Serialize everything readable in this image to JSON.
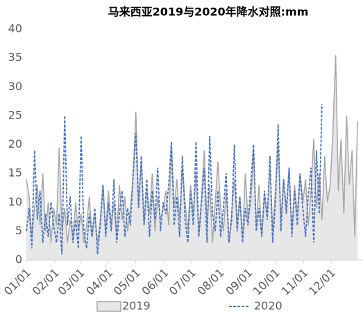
{
  "chart_data": {
    "type": "area-line",
    "title": "马来西亚2019与2020年降水对照:mm",
    "x": [
      1,
      4,
      7,
      10,
      13,
      16,
      19,
      22,
      25,
      28,
      31,
      34,
      37,
      40,
      43,
      46,
      49,
      52,
      55,
      58,
      61,
      64,
      67,
      70,
      73,
      76,
      79,
      82,
      85,
      88,
      91,
      94,
      97,
      100,
      103,
      106,
      109,
      112,
      115,
      118,
      121,
      124,
      127,
      130,
      133,
      136,
      139,
      142,
      145,
      148,
      151,
      154,
      157,
      160,
      163,
      166,
      169,
      172,
      175,
      178,
      181,
      184,
      187,
      190,
      193,
      196,
      199,
      202,
      205,
      208,
      211,
      214,
      217,
      220,
      223,
      226,
      229,
      232,
      235,
      238,
      241,
      244,
      247,
      250,
      253,
      256,
      259,
      262,
      265,
      268,
      271,
      274,
      277,
      280,
      283,
      286,
      289,
      292,
      295,
      298,
      301,
      304,
      307,
      310,
      313,
      316,
      319,
      322,
      325,
      328,
      331,
      334,
      337,
      340,
      343,
      346,
      349,
      352,
      355,
      358,
      361,
      364
    ],
    "series": [
      {
        "name": "2019",
        "color": "#a6a6a6",
        "fill": "#e7e7e7",
        "style": "area",
        "values": [
          14,
          11,
          4,
          9,
          13,
          6,
          15,
          5,
          10,
          3,
          9,
          6,
          19.5,
          5,
          9,
          3,
          7,
          4,
          10,
          5,
          8,
          3,
          6,
          11,
          4,
          8,
          3,
          7,
          13,
          5,
          12,
          6,
          10,
          4,
          13,
          7,
          11,
          5,
          9,
          14,
          25.7,
          10,
          17,
          6,
          12,
          8,
          15,
          5,
          11,
          7,
          9,
          12,
          6,
          20,
          9,
          14,
          7,
          16,
          10,
          5,
          13,
          8,
          15,
          4,
          11,
          19,
          6,
          13,
          3,
          10,
          17,
          9,
          5,
          12,
          3,
          8,
          14,
          6,
          11,
          4,
          15,
          7,
          10,
          19,
          6,
          13,
          4,
          11,
          8,
          16,
          5,
          12,
          20,
          7,
          14,
          9,
          16,
          5,
          13,
          8,
          15,
          10,
          14,
          6,
          12,
          21,
          9,
          15,
          7,
          18,
          10,
          13,
          22,
          35.5,
          12,
          21,
          8,
          25,
          13,
          19,
          4,
          24
        ]
      },
      {
        "name": "2020",
        "color": "#4472c4",
        "style": "dashed",
        "values": [
          5,
          9,
          2,
          19,
          7,
          12,
          3,
          8,
          4,
          10,
          6,
          3,
          8,
          1,
          25,
          6,
          11,
          3,
          7,
          2,
          21.5,
          5,
          2,
          8,
          4,
          9,
          1,
          6,
          13,
          4,
          10,
          5,
          14,
          3,
          8,
          12,
          4,
          9,
          6,
          15,
          22,
          9,
          18,
          6,
          14,
          4,
          12,
          7,
          16,
          5,
          10,
          8,
          13,
          20.5,
          6,
          11,
          4,
          18,
          7,
          3,
          12,
          6,
          20.5,
          4,
          10,
          16,
          3,
          21.5,
          8,
          5,
          12,
          4,
          9,
          15,
          3,
          7,
          20,
          5,
          11,
          3,
          9,
          6,
          13,
          20,
          5,
          9,
          4,
          12,
          7,
          18,
          3,
          10,
          23.5,
          5,
          14,
          8,
          16,
          4,
          12,
          6,
          15,
          9,
          4,
          11,
          16,
          3,
          19,
          8,
          27,
          null,
          null,
          null,
          null,
          null,
          null,
          null,
          null,
          null,
          null,
          null,
          null,
          null
        ]
      }
    ],
    "xlim": [
      1,
      370
    ],
    "xticks": [
      {
        "value": 1,
        "label": "01/01"
      },
      {
        "value": 32,
        "label": "02/01"
      },
      {
        "value": 60,
        "label": "03/01"
      },
      {
        "value": 91,
        "label": "04/01"
      },
      {
        "value": 121,
        "label": "05/01"
      },
      {
        "value": 152,
        "label": "06/01"
      },
      {
        "value": 182,
        "label": "07/01"
      },
      {
        "value": 213,
        "label": "08/01"
      },
      {
        "value": 244,
        "label": "09/01"
      },
      {
        "value": 274,
        "label": "10/01"
      },
      {
        "value": 305,
        "label": "11/01"
      },
      {
        "value": 335,
        "label": "12/01"
      }
    ],
    "ylim": [
      0,
      40
    ],
    "yticks": [
      0,
      5,
      10,
      15,
      20,
      25,
      30,
      35,
      40
    ],
    "grid": false,
    "legend": "bottom"
  }
}
